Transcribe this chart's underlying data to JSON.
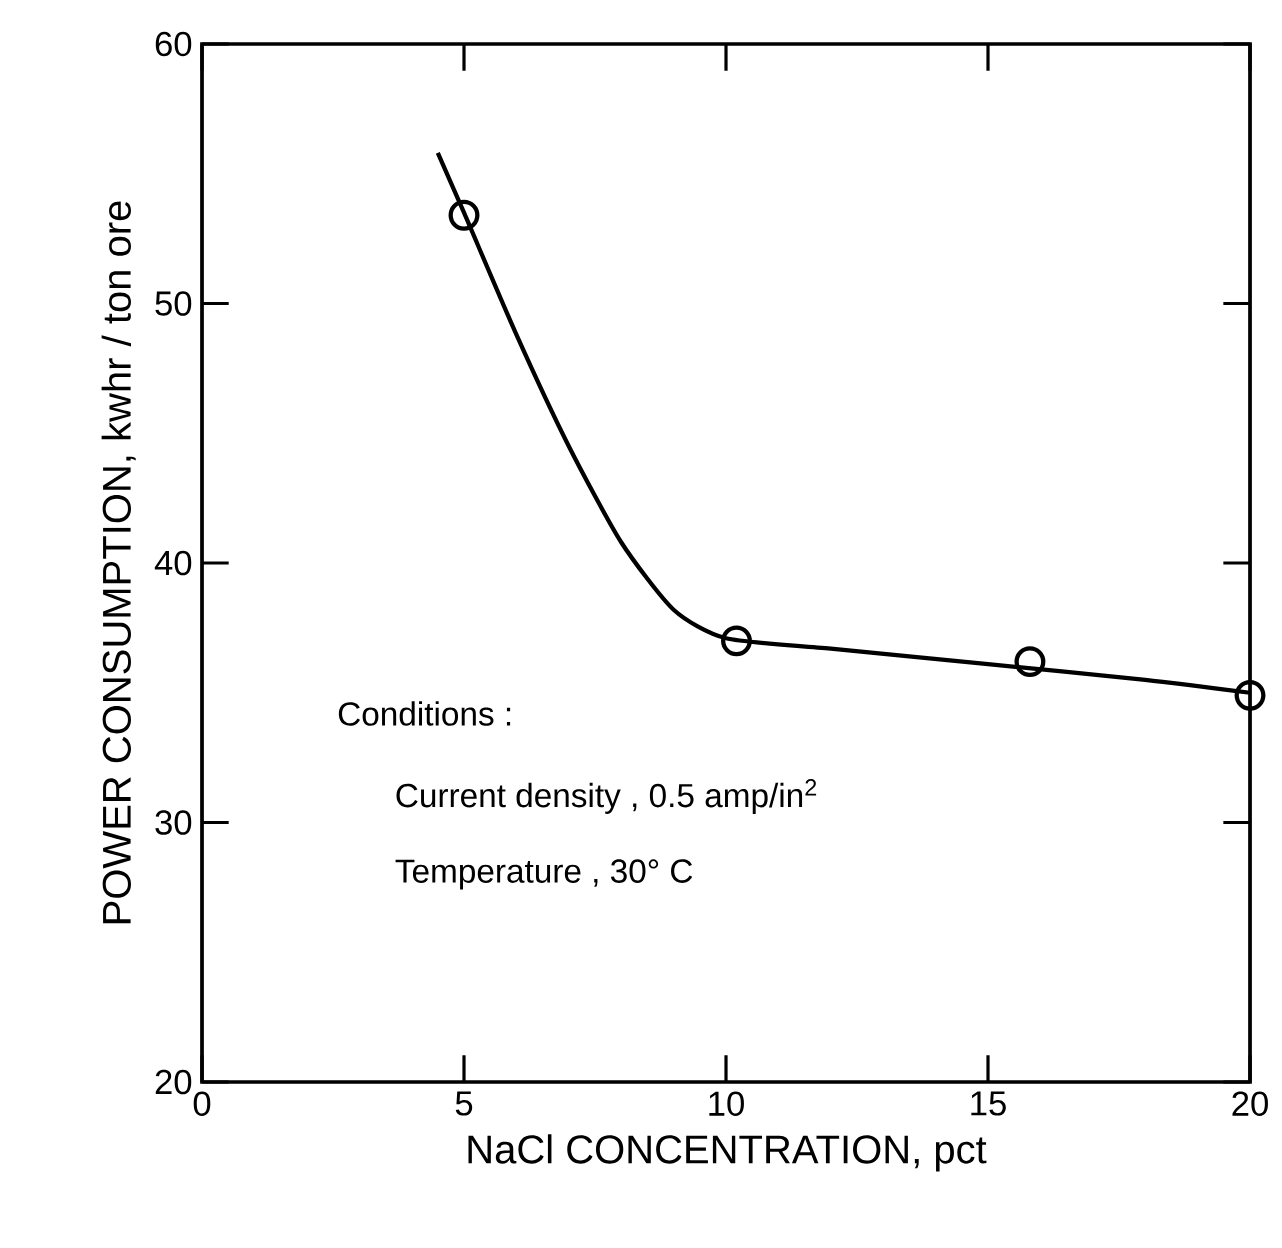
{
  "chart_data": {
    "type": "scatter",
    "xlabel": "NaCl CONCENTRATION, pct",
    "ylabel": "POWER CONSUMPTION, kwhr / ton ore",
    "xlim": [
      0,
      20
    ],
    "ylim": [
      20,
      60
    ],
    "xticks": [
      0,
      5,
      10,
      15,
      20
    ],
    "yticks": [
      20,
      30,
      40,
      50,
      60
    ],
    "marker": "circle",
    "series": [
      {
        "color": "#000000",
        "x": [
          5,
          10.2,
          15.8,
          20
        ],
        "values": [
          53.4,
          37.0,
          36.2,
          34.9
        ]
      },
      {
        "type": "line",
        "color": "#000000",
        "marker": "none",
        "x": [
          4.5,
          5,
          6,
          7,
          8,
          9,
          10,
          12,
          15,
          18,
          20
        ],
        "values": [
          55.8,
          53.5,
          48.8,
          44.5,
          40.8,
          38.2,
          37.1,
          36.7,
          36.1,
          35.5,
          35.0
        ]
      }
    ],
    "annotations": [
      "Conditions :",
      "Current density , 0.5 amp/in$^{2}$",
      "Temperature , 30° C"
    ]
  }
}
